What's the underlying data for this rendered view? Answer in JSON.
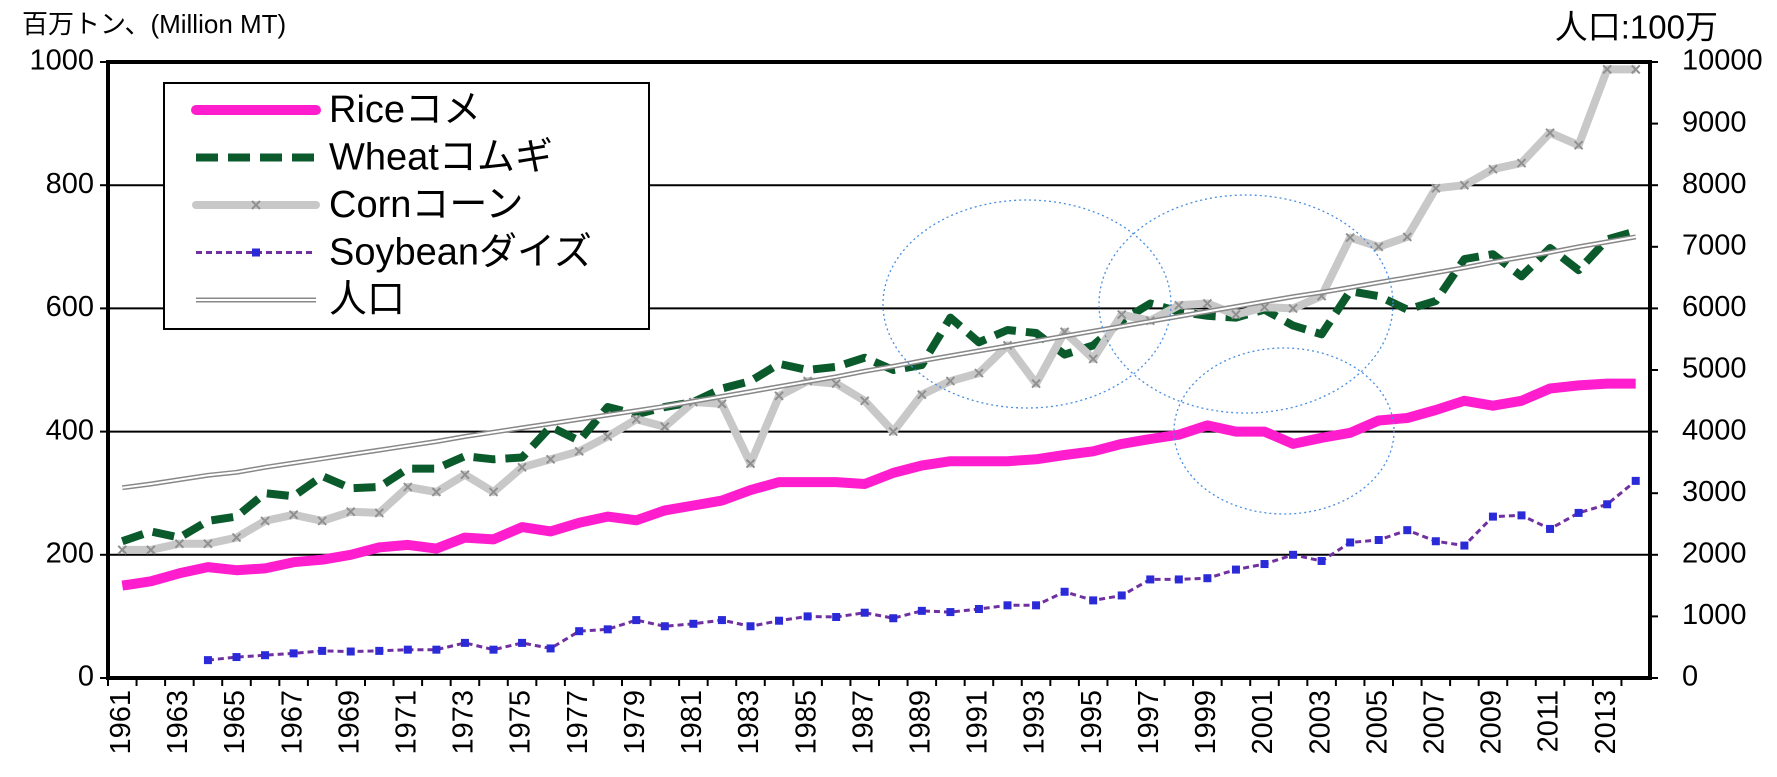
{
  "chart_data": {
    "type": "line",
    "y_label": "百万トン、(Million MT)",
    "y2_label": "人口:100万",
    "categories": [
      "1961",
      null,
      "1963",
      null,
      "1965",
      null,
      "1967",
      null,
      "1969",
      null,
      "1971",
      null,
      "1973",
      null,
      "1975",
      null,
      "1977",
      null,
      "1979",
      null,
      "1981",
      null,
      "1983",
      null,
      "1985",
      null,
      "1987",
      null,
      "1989",
      null,
      "1991",
      null,
      "1993",
      null,
      "1995",
      null,
      "1997",
      null,
      "1999",
      null,
      "2001",
      null,
      "2003",
      null,
      "2005",
      null,
      "2007",
      null,
      "2009",
      null,
      "2011",
      null,
      "2013",
      null
    ],
    "ylim": [
      0,
      1000
    ],
    "yticks": [
      0,
      200,
      400,
      600,
      800,
      1000
    ],
    "y2lim": [
      0,
      10000
    ],
    "y2ticks": [
      0,
      1000,
      2000,
      3000,
      4000,
      5000,
      6000,
      7000,
      8000,
      9000,
      10000
    ],
    "grid": true,
    "legend": "upper left",
    "series": [
      {
        "name": "Riceコメ",
        "color": "#ff1dce",
        "style": "solid",
        "values": [
          150,
          157,
          170,
          180,
          175,
          178,
          188,
          192,
          200,
          212,
          216,
          210,
          228,
          225,
          245,
          238,
          252,
          262,
          256,
          272,
          280,
          288,
          305,
          318,
          318,
          318,
          315,
          333,
          345,
          352,
          352,
          352,
          355,
          362,
          368,
          380,
          388,
          395,
          410,
          400,
          400,
          380,
          390,
          398,
          418,
          422,
          435,
          450,
          442,
          450,
          470,
          475,
          478,
          478
        ]
      },
      {
        "name": "Wheatコムギ",
        "color": "#0b5a2c",
        "style": "dashed",
        "values": [
          222,
          238,
          228,
          255,
          262,
          300,
          295,
          328,
          308,
          310,
          340,
          340,
          360,
          355,
          358,
          408,
          385,
          440,
          428,
          440,
          448,
          470,
          482,
          510,
          500,
          505,
          520,
          500,
          508,
          585,
          545,
          565,
          560,
          525,
          540,
          580,
          608,
          595,
          588,
          585,
          598,
          572,
          558,
          628,
          620,
          598,
          612,
          680,
          688,
          652,
          698,
          662,
          712,
          725
        ]
      },
      {
        "name": "Cornコーン",
        "color": "#c8c8c8",
        "style": "solid",
        "marker": "x",
        "marker_color": "#909090",
        "values": [
          208,
          208,
          218,
          218,
          228,
          255,
          265,
          255,
          270,
          268,
          310,
          302,
          330,
          302,
          342,
          355,
          368,
          392,
          420,
          408,
          448,
          445,
          348,
          458,
          482,
          478,
          450,
          400,
          460,
          482,
          495,
          540,
          478,
          562,
          518,
          590,
          580,
          605,
          608,
          590,
          602,
          600,
          620,
          715,
          700,
          716,
          795,
          800,
          826,
          836,
          885,
          865,
          988,
          988
        ]
      },
      {
        "name": "Soybeanダイズ",
        "color": "#7030a0",
        "style": "dotted",
        "marker": "square",
        "marker_color": "#2a2ad8",
        "values": [
          null,
          null,
          null,
          29,
          34,
          37,
          40,
          44,
          43,
          44,
          46,
          46,
          57,
          46,
          57,
          48,
          76,
          79,
          94,
          84,
          88,
          94,
          84,
          93,
          100,
          99,
          106,
          97,
          109,
          107,
          112,
          118,
          118,
          140,
          126,
          134,
          160,
          160,
          162,
          176,
          185,
          200,
          190,
          220,
          224,
          240,
          222,
          215,
          262,
          264,
          242,
          268,
          282,
          320
        ]
      },
      {
        "name": "人口",
        "color": "#888888",
        "style": "double",
        "axis": "y2",
        "values": [
          3090,
          3150,
          3220,
          3290,
          3340,
          3420,
          3490,
          3560,
          3630,
          3700,
          3770,
          3840,
          3920,
          3990,
          4060,
          4130,
          4200,
          4270,
          4340,
          4410,
          4490,
          4570,
          4650,
          4730,
          4810,
          4890,
          4980,
          5060,
          5150,
          5230,
          5310,
          5390,
          5470,
          5550,
          5630,
          5710,
          5790,
          5870,
          5950,
          6030,
          6110,
          6190,
          6260,
          6340,
          6420,
          6500,
          6580,
          6660,
          6750,
          6830,
          6910,
          7000,
          7080,
          7160
        ]
      }
    ]
  }
}
